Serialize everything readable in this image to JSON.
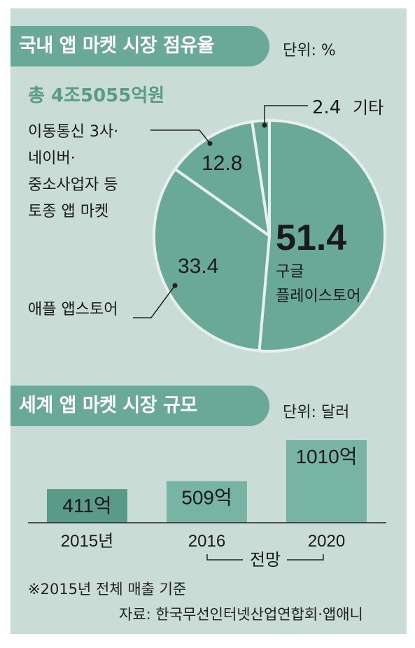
{
  "colors": {
    "panel": "#c9dcd5",
    "banner": "#6aa898",
    "pie": "#6aa898",
    "bar_dark": "#5a9a88",
    "bar_light": "#77b4a4",
    "accent_text": "#5a9a88"
  },
  "domestic": {
    "title": "국내 앱 마켓 시장 점유율",
    "unit": "단위: %",
    "total": "총 4조5055억원"
  },
  "global": {
    "title": "세계 앱 마켓 시장 규모",
    "unit": "단위: 달러"
  },
  "footnote": "※2015년 전체 매출 기준",
  "source": "자료: 한국무선인터넷산업연합회·앱애니",
  "chart_data": [
    {
      "type": "pie",
      "title": "국내 앱 마켓 시장 점유율",
      "unit": "%",
      "slices": [
        {
          "label": "구글 플레이스토어",
          "value": 51.4,
          "value_text": "51.4",
          "label_lines": [
            "구글",
            "플레이스토어"
          ]
        },
        {
          "label": "애플 앱스토어",
          "value": 33.4,
          "value_text": "33.4",
          "label_lines": [
            "애플 앱스토어"
          ]
        },
        {
          "label": "이동통신 3사·네이버·중소사업자 등 토종 앱 마켓",
          "value": 12.8,
          "value_text": "12.8",
          "label_lines": [
            "이동통신 3사·",
            "네이버·",
            "중소사업자 등",
            "토종 앱 마켓"
          ]
        },
        {
          "label": "기타",
          "value": 2.4,
          "value_text": "2.4",
          "label_lines": [
            "기타"
          ]
        }
      ]
    },
    {
      "type": "bar",
      "title": "세계 앱 마켓 시장 규모",
      "unit": "달러",
      "categories": [
        "2015년",
        "2016",
        "2020"
      ],
      "values": [
        411,
        509,
        1010
      ],
      "value_labels": [
        "411억",
        "509억",
        "1010억"
      ],
      "forecast_label": "전망"
    }
  ]
}
